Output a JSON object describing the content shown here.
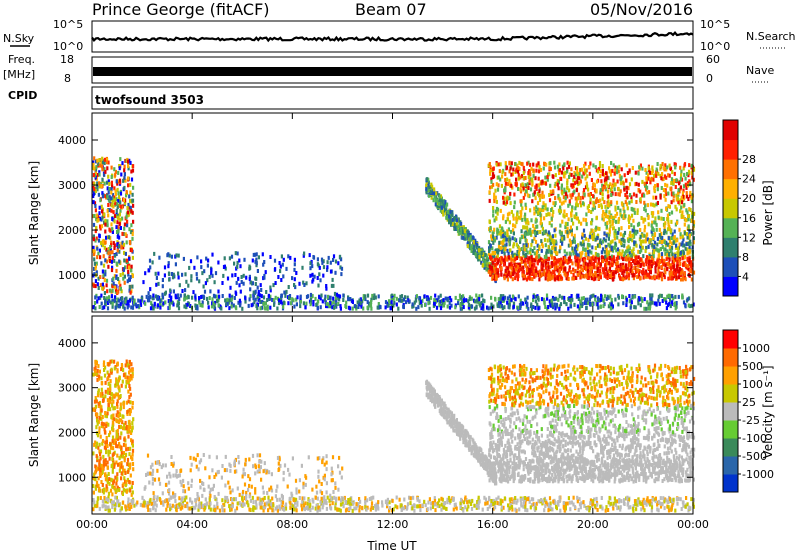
{
  "header": {
    "station": "Prince George (fitACF)",
    "beam": "Beam 07",
    "date": "05/Nov/2016"
  },
  "strip_sky": {
    "left_label": "N.Sky",
    "left_ticks": [
      "10^5",
      "10^0"
    ],
    "right_ticks": [
      "10^5",
      "10^0"
    ],
    "right_label": "N.Search"
  },
  "strip_freq": {
    "left_label_1": "Freq.",
    "left_label_2": "[MHz]",
    "left_ticks": [
      "18",
      "8"
    ],
    "right_ticks": [
      "60",
      "0"
    ],
    "right_label": "Nave"
  },
  "strip_cpid": {
    "left_label": "CPID",
    "program": "twofsound 3503"
  },
  "colors": {
    "power_scale": [
      "#0000ff",
      "#1d4fb8",
      "#2f7f6e",
      "#55b255",
      "#c8c800",
      "#ffb000",
      "#ff7000",
      "#ff2000",
      "#e00000"
    ],
    "velocity_scale": [
      "#0033cc",
      "#2a66aa",
      "#3a8a5a",
      "#66cc33",
      "#bbbbbb",
      "#c8c800",
      "#ffa000",
      "#ff6a00",
      "#ff0000"
    ]
  },
  "chart_data": [
    {
      "type": "heatmap",
      "name": "power",
      "ylabel": "Slant Range [km]",
      "xlabel": "",
      "xlim": [
        0,
        24
      ],
      "ylim": [
        180,
        4600
      ],
      "yticks": [
        1000,
        2000,
        3000,
        4000
      ],
      "colorbar_label": "Power [dB]",
      "colorbar_ticks": [
        "4",
        "8",
        "12",
        "16",
        "20",
        "24",
        "28"
      ],
      "colorbar_range": [
        0,
        32
      ]
    },
    {
      "type": "heatmap",
      "name": "velocity",
      "ylabel": "Slant Range [km]",
      "xlabel": "Time UT",
      "xlim": [
        0,
        24
      ],
      "ylim": [
        180,
        4600
      ],
      "yticks": [
        1000,
        2000,
        3000,
        4000
      ],
      "xticks": [
        "00:00",
        "04:00",
        "08:00",
        "12:00",
        "16:00",
        "20:00",
        "00:00"
      ],
      "colorbar_label": "Velocity [m s⁻¹]",
      "colorbar_ticks": [
        "1000",
        "500",
        "100",
        "25",
        "-25",
        "-100",
        "-500",
        "-1000"
      ]
    }
  ]
}
